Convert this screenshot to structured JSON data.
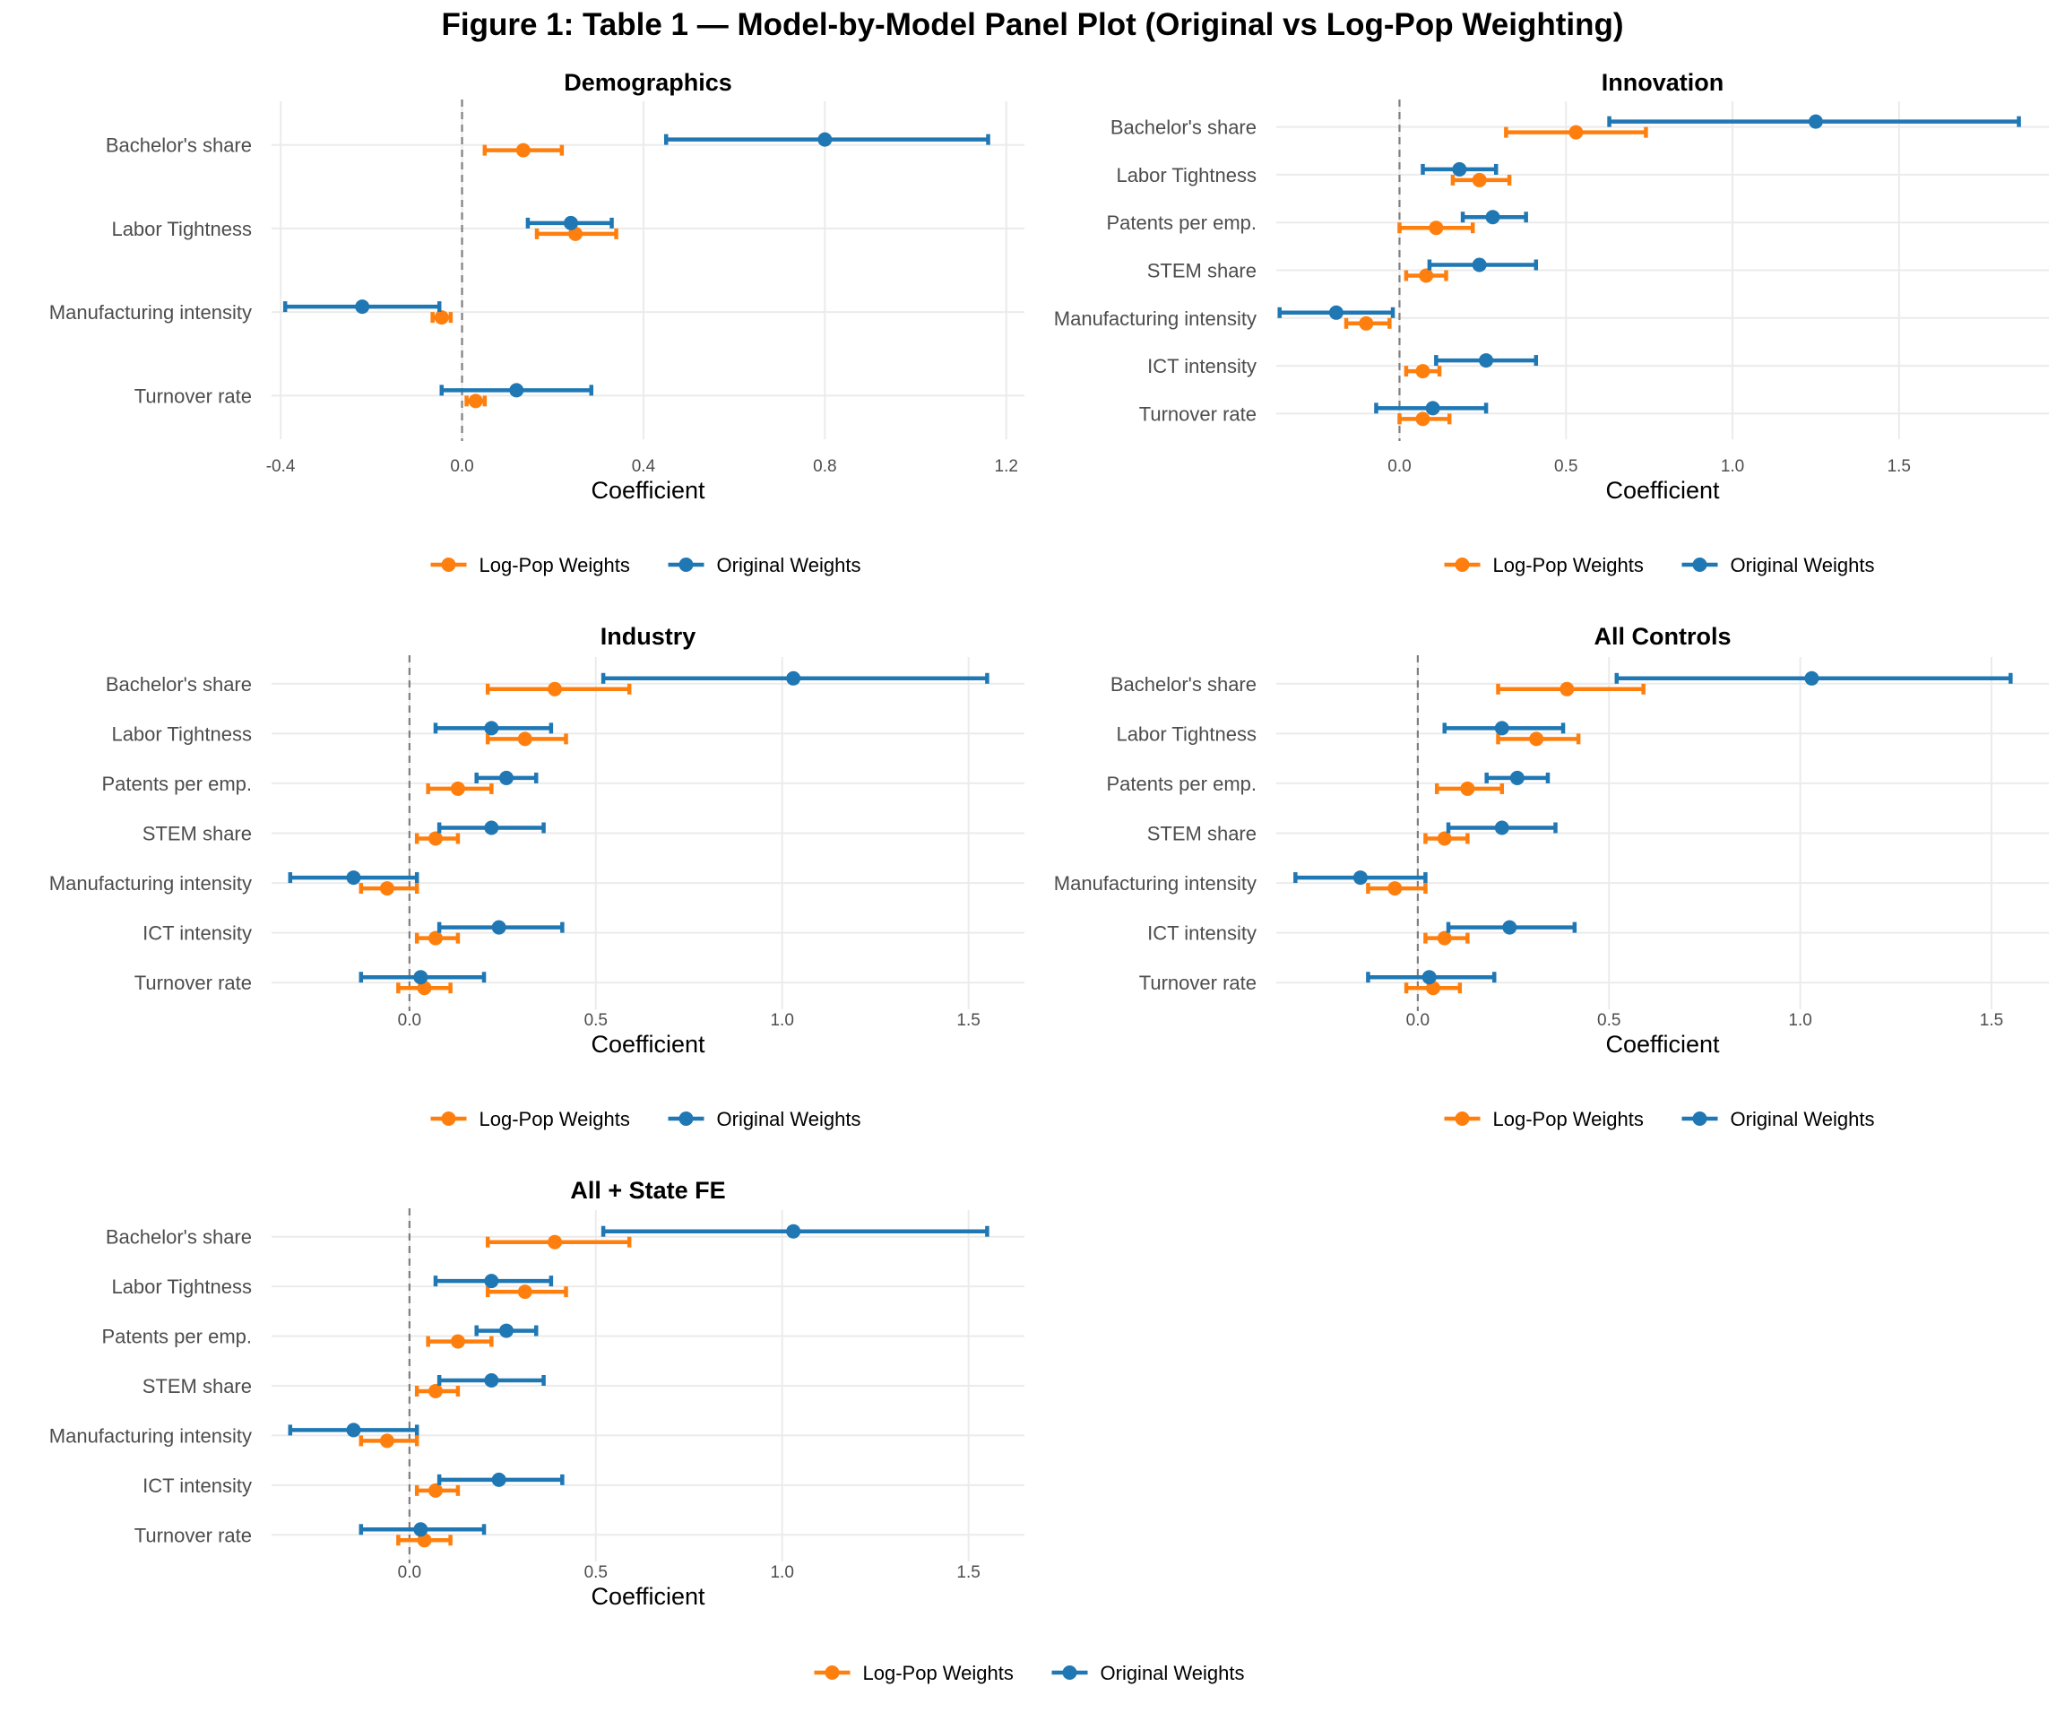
{
  "figure": {
    "title": "Figure 1: Table 1 — Model-by-Model Panel Plot (Original vs Log-Pop Weighting)"
  },
  "colors": {
    "log_pop": "#ff7f0e",
    "original": "#1f77b4",
    "grid": "#ebebeb",
    "zero_line": "#7f7f7f"
  },
  "legend": {
    "items": [
      {
        "name": "Log-Pop Weights",
        "color": "#ff7f0e"
      },
      {
        "name": "Original Weights",
        "color": "#1f77b4"
      }
    ],
    "placement": "bottom"
  },
  "chart_data": [
    {
      "type": "dot-whisker",
      "title": "Demographics",
      "xlabel": "Coefficient",
      "xlim": [
        -0.42,
        1.24
      ],
      "xticks": [
        -0.4,
        0.0,
        0.4,
        0.8,
        1.2
      ],
      "xtick_labels": [
        "-0.4",
        "0.0",
        "0.4",
        "0.8",
        "1.2"
      ],
      "categories": [
        "Bachelor's share",
        "Labor Tightness",
        "Manufacturing intensity",
        "Turnover rate"
      ],
      "series": [
        {
          "name": "Log-Pop Weights",
          "estimates": [
            0.135,
            0.25,
            -0.045,
            0.03
          ],
          "lower": [
            0.05,
            0.165,
            -0.065,
            0.01
          ],
          "upper": [
            0.22,
            0.34,
            -0.025,
            0.05
          ]
        },
        {
          "name": "Original Weights",
          "estimates": [
            0.8,
            0.24,
            -0.22,
            0.12
          ],
          "lower": [
            0.45,
            0.145,
            -0.39,
            -0.045
          ],
          "upper": [
            1.16,
            0.33,
            -0.05,
            0.285
          ]
        }
      ]
    },
    {
      "type": "dot-whisker",
      "title": "Innovation",
      "xlabel": "Coefficient",
      "xlim": [
        -0.37,
        1.95
      ],
      "xticks": [
        0.0,
        0.5,
        1.0,
        1.5
      ],
      "xtick_labels": [
        "0.0",
        "0.5",
        "1.0",
        "1.5"
      ],
      "categories": [
        "Bachelor's share",
        "Labor Tightness",
        "Patents per emp.",
        "STEM share",
        "Manufacturing intensity",
        "ICT intensity",
        "Turnover rate"
      ],
      "series": [
        {
          "name": "Log-Pop Weights",
          "estimates": [
            0.53,
            0.24,
            0.11,
            0.08,
            -0.1,
            0.07,
            0.07
          ],
          "lower": [
            0.32,
            0.16,
            0.0,
            0.02,
            -0.16,
            0.02,
            0.0
          ],
          "upper": [
            0.74,
            0.33,
            0.22,
            0.14,
            -0.03,
            0.12,
            0.15
          ]
        },
        {
          "name": "Original Weights",
          "estimates": [
            1.25,
            0.18,
            0.28,
            0.24,
            -0.19,
            0.26,
            0.1
          ],
          "lower": [
            0.63,
            0.07,
            0.19,
            0.09,
            -0.36,
            0.11,
            -0.07
          ],
          "upper": [
            1.86,
            0.29,
            0.38,
            0.41,
            -0.02,
            0.41,
            0.26
          ]
        }
      ]
    },
    {
      "type": "dot-whisker",
      "title": "Industry",
      "xlabel": "Coefficient",
      "xlim": [
        -0.37,
        1.65
      ],
      "xticks": [
        0.0,
        0.5,
        1.0,
        1.5
      ],
      "xtick_labels": [
        "0.0",
        "0.5",
        "1.0",
        "1.5"
      ],
      "categories": [
        "Bachelor's share",
        "Labor Tightness",
        "Patents per emp.",
        "STEM share",
        "Manufacturing intensity",
        "ICT intensity",
        "Turnover rate"
      ],
      "series": [
        {
          "name": "Log-Pop Weights",
          "estimates": [
            0.39,
            0.31,
            0.13,
            0.07,
            -0.06,
            0.07,
            0.04
          ],
          "lower": [
            0.21,
            0.21,
            0.05,
            0.02,
            -0.13,
            0.02,
            -0.03
          ],
          "upper": [
            0.59,
            0.42,
            0.22,
            0.13,
            0.02,
            0.13,
            0.11
          ]
        },
        {
          "name": "Original Weights",
          "estimates": [
            1.03,
            0.22,
            0.26,
            0.22,
            -0.15,
            0.24,
            0.03
          ],
          "lower": [
            0.52,
            0.07,
            0.18,
            0.08,
            -0.32,
            0.08,
            -0.13
          ],
          "upper": [
            1.55,
            0.38,
            0.34,
            0.36,
            0.02,
            0.41,
            0.2
          ]
        }
      ]
    },
    {
      "type": "dot-whisker",
      "title": "All Controls",
      "xlabel": "Coefficient",
      "xlim": [
        -0.37,
        1.65
      ],
      "xticks": [
        0.0,
        0.5,
        1.0,
        1.5
      ],
      "xtick_labels": [
        "0.0",
        "0.5",
        "1.0",
        "1.5"
      ],
      "categories": [
        "Bachelor's share",
        "Labor Tightness",
        "Patents per emp.",
        "STEM share",
        "Manufacturing intensity",
        "ICT intensity",
        "Turnover rate"
      ],
      "series": [
        {
          "name": "Log-Pop Weights",
          "estimates": [
            0.39,
            0.31,
            0.13,
            0.07,
            -0.06,
            0.07,
            0.04
          ],
          "lower": [
            0.21,
            0.21,
            0.05,
            0.02,
            -0.13,
            0.02,
            -0.03
          ],
          "upper": [
            0.59,
            0.42,
            0.22,
            0.13,
            0.02,
            0.13,
            0.11
          ]
        },
        {
          "name": "Original Weights",
          "estimates": [
            1.03,
            0.22,
            0.26,
            0.22,
            -0.15,
            0.24,
            0.03
          ],
          "lower": [
            0.52,
            0.07,
            0.18,
            0.08,
            -0.32,
            0.08,
            -0.13
          ],
          "upper": [
            1.55,
            0.38,
            0.34,
            0.36,
            0.02,
            0.41,
            0.2
          ]
        }
      ]
    },
    {
      "type": "dot-whisker",
      "title": "All + State FE",
      "xlabel": "Coefficient",
      "xlim": [
        -0.37,
        1.65
      ],
      "xticks": [
        0.0,
        0.5,
        1.0,
        1.5
      ],
      "xtick_labels": [
        "0.0",
        "0.5",
        "1.0",
        "1.5"
      ],
      "categories": [
        "Bachelor's share",
        "Labor Tightness",
        "Patents per emp.",
        "STEM share",
        "Manufacturing intensity",
        "ICT intensity",
        "Turnover rate"
      ],
      "series": [
        {
          "name": "Log-Pop Weights",
          "estimates": [
            0.39,
            0.31,
            0.13,
            0.07,
            -0.06,
            0.07,
            0.04
          ],
          "lower": [
            0.21,
            0.21,
            0.05,
            0.02,
            -0.13,
            0.02,
            -0.03
          ],
          "upper": [
            0.59,
            0.42,
            0.22,
            0.13,
            0.02,
            0.13,
            0.11
          ]
        },
        {
          "name": "Original Weights",
          "estimates": [
            1.03,
            0.22,
            0.26,
            0.22,
            -0.15,
            0.24,
            0.03
          ],
          "lower": [
            0.52,
            0.07,
            0.18,
            0.08,
            -0.32,
            0.08,
            -0.13
          ],
          "upper": [
            1.55,
            0.38,
            0.34,
            0.36,
            0.02,
            0.41,
            0.2
          ]
        }
      ]
    }
  ]
}
